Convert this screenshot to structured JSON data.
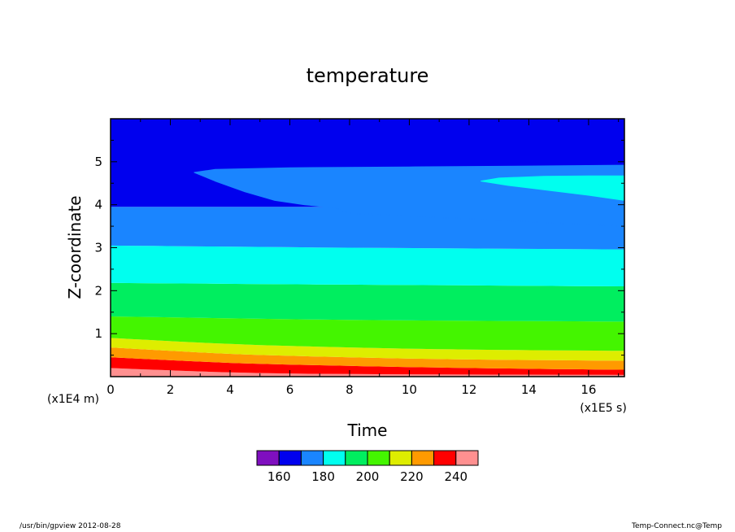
{
  "footer": {
    "left": "/usr/bin/gpview   2012-08-28",
    "right": "Temp-Connect.nc@Temp"
  },
  "chart_data": {
    "type": "contour",
    "title": "temperature",
    "xlabel": "Time",
    "ylabel": "Z-coordinate",
    "x_unit": "(x1E5 s)",
    "y_unit": "(x1E4 m)",
    "xlim": [
      0,
      17.2
    ],
    "ylim": [
      0,
      6
    ],
    "x_ticks": [
      0,
      2,
      4,
      6,
      8,
      10,
      12,
      14,
      16
    ],
    "y_ticks": [
      1,
      2,
      3,
      4,
      5
    ],
    "colorbar": {
      "colors": [
        "#7f0fbf",
        "#0000ee",
        "#1a85ff",
        "#00ffef",
        "#00ee5f",
        "#44f500",
        "#deed00",
        "#ff9a00",
        "#ff0000",
        "#ff9090"
      ],
      "labels": [
        "160",
        "180",
        "200",
        "220",
        "240"
      ]
    },
    "regions": [
      {
        "level": "230-240",
        "color": "#ff9090",
        "lower": [
          [
            0,
            0
          ],
          [
            17.2,
            0
          ]
        ],
        "upper": [
          [
            0,
            0.2
          ],
          [
            4,
            0.1
          ],
          [
            8,
            0.06
          ],
          [
            17.2,
            0.04
          ]
        ]
      },
      {
        "level": "220-230",
        "color": "#ff0000",
        "lower": [
          [
            0,
            0.2
          ],
          [
            4,
            0.1
          ],
          [
            8,
            0.06
          ],
          [
            17.2,
            0.04
          ]
        ],
        "upper": [
          [
            0,
            0.45
          ],
          [
            4,
            0.32
          ],
          [
            8,
            0.25
          ],
          [
            12,
            0.2
          ],
          [
            17.2,
            0.16
          ]
        ]
      },
      {
        "level": "210-220",
        "color": "#ff9a00",
        "lower": [
          [
            0,
            0.45
          ],
          [
            4,
            0.32
          ],
          [
            8,
            0.25
          ],
          [
            12,
            0.2
          ],
          [
            17.2,
            0.16
          ]
        ],
        "upper": [
          [
            0,
            0.68
          ],
          [
            4,
            0.53
          ],
          [
            8,
            0.45
          ],
          [
            12,
            0.4
          ],
          [
            17.2,
            0.37
          ]
        ]
      },
      {
        "level": "200-210",
        "color": "#deed00",
        "lower": [
          [
            0,
            0.68
          ],
          [
            4,
            0.53
          ],
          [
            8,
            0.45
          ],
          [
            12,
            0.4
          ],
          [
            17.2,
            0.37
          ]
        ],
        "upper": [
          [
            0,
            0.9
          ],
          [
            4,
            0.76
          ],
          [
            8,
            0.68
          ],
          [
            12,
            0.63
          ],
          [
            17.2,
            0.6
          ]
        ]
      },
      {
        "level": "190-200",
        "color": "#44f500",
        "lower": [
          [
            0,
            0.9
          ],
          [
            4,
            0.76
          ],
          [
            8,
            0.68
          ],
          [
            12,
            0.63
          ],
          [
            17.2,
            0.6
          ]
        ],
        "upper": [
          [
            0,
            1.4
          ],
          [
            8,
            1.32
          ],
          [
            17.2,
            1.28
          ]
        ]
      },
      {
        "level": "180-190",
        "color": "#00ee5f",
        "lower": [
          [
            0,
            1.4
          ],
          [
            8,
            1.32
          ],
          [
            17.2,
            1.28
          ]
        ],
        "upper": [
          [
            0,
            2.18
          ],
          [
            8,
            2.14
          ],
          [
            17.2,
            2.1
          ]
        ]
      },
      {
        "level": "170-180",
        "color": "#00ffef",
        "lower": [
          [
            0,
            2.18
          ],
          [
            8,
            2.14
          ],
          [
            17.2,
            2.1
          ]
        ],
        "upper": [
          [
            0,
            3.05
          ],
          [
            8,
            3.0
          ],
          [
            17.2,
            2.96
          ]
        ]
      },
      {
        "level": "160-170",
        "color": "#1a85ff",
        "lower": [
          [
            0,
            3.05
          ],
          [
            8,
            3.0
          ],
          [
            17.2,
            2.96
          ]
        ],
        "upper": [
          [
            0,
            3.95
          ],
          [
            17.2,
            3.95
          ]
        ]
      },
      {
        "level": "150-160",
        "color": "#0000ee",
        "lower": [
          [
            0,
            3.95
          ],
          [
            17.2,
            3.95
          ]
        ],
        "upper": [
          [
            0,
            6
          ],
          [
            17.2,
            6
          ]
        ]
      }
    ],
    "patches": [
      {
        "level": "160-170",
        "color": "#1a85ff",
        "outline": [
          [
            2.8,
            4.75
          ],
          [
            3.5,
            4.82
          ],
          [
            6,
            4.86
          ],
          [
            10,
            4.88
          ],
          [
            14,
            4.9
          ],
          [
            17.2,
            4.92
          ],
          [
            17.2,
            3.5
          ],
          [
            8,
            3.8
          ],
          [
            7.5,
            3.93
          ],
          [
            6.5,
            4.0
          ],
          [
            5.5,
            4.1
          ],
          [
            4.5,
            4.3
          ],
          [
            3.5,
            4.55
          ]
        ]
      },
      {
        "level": "170-180",
        "color": "#00ffef",
        "outline": [
          [
            12.4,
            4.55
          ],
          [
            13,
            4.62
          ],
          [
            14.5,
            4.66
          ],
          [
            16,
            4.67
          ],
          [
            17.2,
            4.67
          ],
          [
            17.2,
            4.1
          ],
          [
            16,
            4.22
          ],
          [
            14.5,
            4.35
          ],
          [
            13.3,
            4.45
          ]
        ]
      }
    ]
  }
}
